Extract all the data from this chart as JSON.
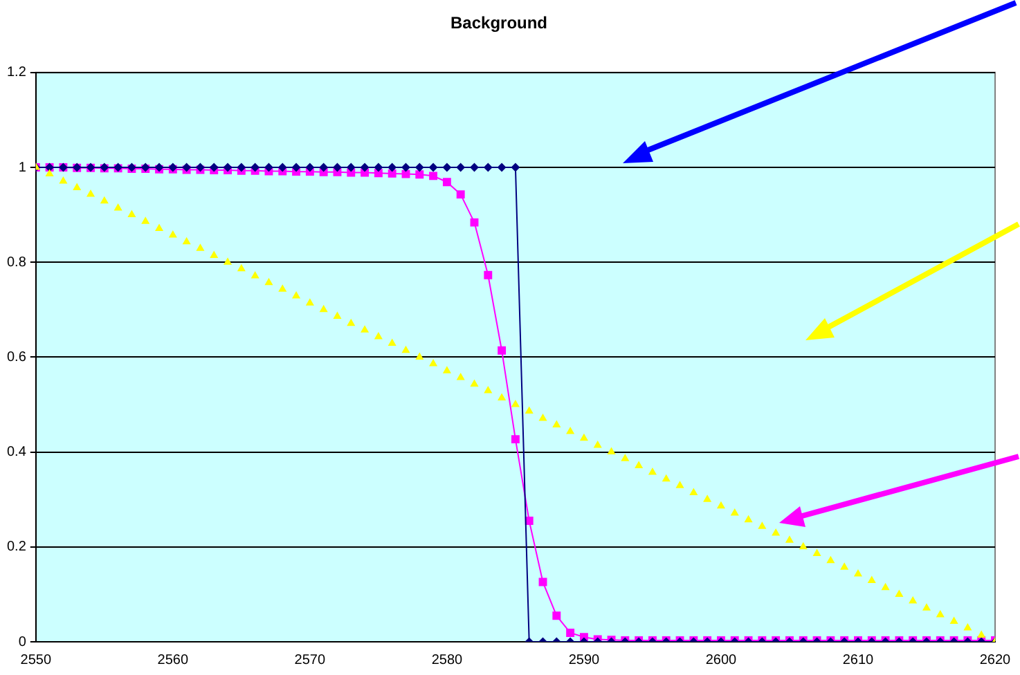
{
  "chart_data": {
    "type": "line",
    "title": "Background",
    "x": [
      2550,
      2551,
      2552,
      2553,
      2554,
      2555,
      2556,
      2557,
      2558,
      2559,
      2560,
      2561,
      2562,
      2563,
      2564,
      2565,
      2566,
      2567,
      2568,
      2569,
      2570,
      2571,
      2572,
      2573,
      2574,
      2575,
      2576,
      2577,
      2578,
      2579,
      2580,
      2581,
      2582,
      2583,
      2584,
      2585,
      2586,
      2587,
      2588,
      2589,
      2590,
      2591,
      2592,
      2593,
      2594,
      2595,
      2596,
      2597,
      2598,
      2599,
      2600,
      2601,
      2602,
      2603,
      2604,
      2605,
      2606,
      2607,
      2608,
      2609,
      2610,
      2611,
      2612,
      2613,
      2614,
      2615,
      2616,
      2617,
      2618,
      2619,
      2620
    ],
    "series": [
      {
        "type": "line",
        "marker": "diamond",
        "color": "#000080",
        "values": [
          1,
          1,
          1,
          1,
          1,
          1,
          1,
          1,
          1,
          1,
          1,
          1,
          1,
          1,
          1,
          1,
          1,
          1,
          1,
          1,
          1,
          1,
          1,
          1,
          1,
          1,
          1,
          1,
          1,
          1,
          1,
          1,
          1,
          1,
          1,
          1,
          0,
          0,
          0,
          0,
          0,
          0,
          0,
          0,
          0,
          0,
          0,
          0,
          0,
          0,
          0,
          0,
          0,
          0,
          0,
          0,
          0,
          0,
          0,
          0,
          0,
          0,
          0,
          0,
          0,
          0,
          0,
          0,
          0,
          0,
          0
        ]
      },
      {
        "type": "line",
        "marker": "square",
        "color": "#ff00ff",
        "values": [
          1,
          1,
          1,
          0.999,
          0.999,
          0.998,
          0.998,
          0.997,
          0.997,
          0.996,
          0.996,
          0.995,
          0.995,
          0.994,
          0.994,
          0.993,
          0.993,
          0.992,
          0.992,
          0.991,
          0.991,
          0.99,
          0.99,
          0.989,
          0.989,
          0.988,
          0.987,
          0.986,
          0.985,
          0.982,
          0.969,
          0.943,
          0.884,
          0.773,
          0.614,
          0.427,
          0.255,
          0.126,
          0.055,
          0.019,
          0.01,
          0.005,
          0.004,
          0.003,
          0.003,
          0.003,
          0.003,
          0.003,
          0.003,
          0.003,
          0.003,
          0.003,
          0.003,
          0.003,
          0.003,
          0.003,
          0.003,
          0.003,
          0.003,
          0.003,
          0.003,
          0.003,
          0.003,
          0.003,
          0.003,
          0.003,
          0.003,
          0.003,
          0.003,
          0.003,
          0.003
        ]
      },
      {
        "type": "scatter",
        "marker": "triangle",
        "color": "#ffff00",
        "values": [
          1,
          0.986,
          0.971,
          0.957,
          0.943,
          0.929,
          0.914,
          0.9,
          0.886,
          0.871,
          0.857,
          0.843,
          0.829,
          0.814,
          0.8,
          0.786,
          0.771,
          0.757,
          0.743,
          0.729,
          0.714,
          0.7,
          0.686,
          0.671,
          0.657,
          0.643,
          0.629,
          0.614,
          0.6,
          0.586,
          0.571,
          0.557,
          0.543,
          0.529,
          0.514,
          0.5,
          0.486,
          0.471,
          0.457,
          0.443,
          0.429,
          0.414,
          0.4,
          0.386,
          0.371,
          0.357,
          0.343,
          0.329,
          0.314,
          0.3,
          0.286,
          0.271,
          0.257,
          0.243,
          0.229,
          0.214,
          0.2,
          0.186,
          0.171,
          0.157,
          0.143,
          0.129,
          0.114,
          0.1,
          0.086,
          0.071,
          0.057,
          0.043,
          0.029,
          0.014,
          0
        ]
      }
    ],
    "xlim": [
      2550,
      2620
    ],
    "xticks": [
      2550,
      2560,
      2570,
      2580,
      2590,
      2600,
      2610,
      2620
    ],
    "ylim": [
      0,
      1.2
    ],
    "yticks": [
      0,
      0.2,
      0.4,
      0.6,
      0.8,
      1,
      1.2
    ],
    "grid": "y",
    "legend": false
  }
}
